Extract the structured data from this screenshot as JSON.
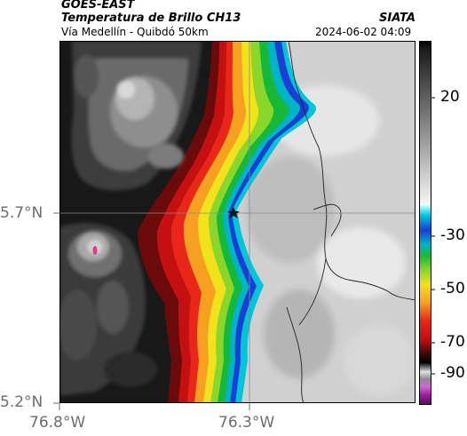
{
  "header": {
    "satellite": "GOES-EAST",
    "product": "Temperatura de Brillo CH13",
    "route": "Vía Medellín - Quibdó 50km",
    "institution": "SIATA",
    "datetime": "2024-06-02 04:09"
  },
  "axes": {
    "lat_labels": [
      "5.7°N",
      "5.2°N"
    ],
    "lon_labels": [
      "76.8°W",
      "76.3°W"
    ]
  },
  "colorbar": {
    "tick_labels": [
      "20",
      "-30",
      "-50",
      "-70",
      "-90"
    ]
  },
  "markers": {
    "reference_point_icon": "star-icon"
  }
}
